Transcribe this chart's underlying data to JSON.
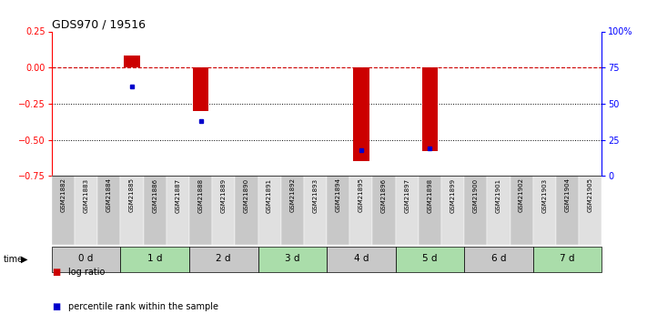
{
  "title": "GDS970 / 19516",
  "samples": [
    "GSM21882",
    "GSM21883",
    "GSM21884",
    "GSM21885",
    "GSM21886",
    "GSM21887",
    "GSM21888",
    "GSM21889",
    "GSM21890",
    "GSM21891",
    "GSM21892",
    "GSM21893",
    "GSM21894",
    "GSM21895",
    "GSM21896",
    "GSM21897",
    "GSM21898",
    "GSM21899",
    "GSM21900",
    "GSM21901",
    "GSM21902",
    "GSM21903",
    "GSM21904",
    "GSM21905"
  ],
  "log_ratio": [
    0,
    0,
    0,
    0.08,
    0,
    0,
    -0.3,
    0,
    0,
    0,
    0,
    0,
    0,
    -0.65,
    0,
    0,
    -0.58,
    0,
    0,
    0,
    0,
    0,
    0,
    0
  ],
  "pct_rank_raw": [
    null,
    null,
    null,
    62,
    null,
    null,
    38,
    null,
    null,
    null,
    null,
    null,
    null,
    18,
    null,
    null,
    19,
    null,
    null,
    null,
    null,
    null,
    null,
    null
  ],
  "ylim": [
    -0.75,
    0.25
  ],
  "yticks_left": [
    -0.75,
    -0.5,
    -0.25,
    0,
    0.25
  ],
  "right_axis_labels": [
    "0",
    "25",
    "50",
    "75",
    "100%"
  ],
  "right_tick_positions": [
    0,
    25,
    50,
    75,
    100
  ],
  "hline_y": 0,
  "dotted_lines": [
    -0.25,
    -0.5
  ],
  "time_groups": [
    {
      "label": "0 d",
      "start": 0,
      "end": 3,
      "color": "#c8c8c8"
    },
    {
      "label": "1 d",
      "start": 3,
      "end": 6,
      "color": "#aaddaa"
    },
    {
      "label": "2 d",
      "start": 6,
      "end": 9,
      "color": "#c8c8c8"
    },
    {
      "label": "3 d",
      "start": 9,
      "end": 12,
      "color": "#aaddaa"
    },
    {
      "label": "4 d",
      "start": 12,
      "end": 15,
      "color": "#c8c8c8"
    },
    {
      "label": "5 d",
      "start": 15,
      "end": 18,
      "color": "#aaddaa"
    },
    {
      "label": "6 d",
      "start": 18,
      "end": 21,
      "color": "#c8c8c8"
    },
    {
      "label": "7 d",
      "start": 21,
      "end": 24,
      "color": "#aaddaa"
    }
  ],
  "bar_color": "#cc0000",
  "pct_color": "#0000cc",
  "dashed_line_color": "#cc0000",
  "dotted_line_color": "#000000",
  "sample_bg_alt": [
    "#c8c8c8",
    "#e0e0e0"
  ],
  "background_color": "#ffffff",
  "pct_rank_min": 0,
  "pct_rank_max": 100
}
